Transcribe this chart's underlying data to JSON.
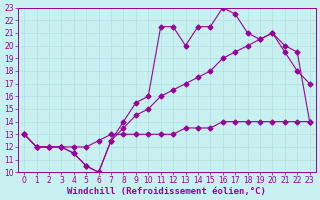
{
  "background_color": "#c8f0f0",
  "grid_color": "#b0e0e0",
  "line_color": "#990099",
  "xlabel": "Windchill (Refroidissement éolien,°C)",
  "xlabel_color": "#990099",
  "xlim": [
    -0.5,
    23.5
  ],
  "ylim": [
    10,
    23
  ],
  "xticks": [
    0,
    1,
    2,
    3,
    4,
    5,
    6,
    7,
    8,
    9,
    10,
    11,
    12,
    13,
    14,
    15,
    16,
    17,
    18,
    19,
    20,
    21,
    22,
    23
  ],
  "yticks": [
    10,
    11,
    12,
    13,
    14,
    15,
    16,
    17,
    18,
    19,
    20,
    21,
    22,
    23
  ],
  "line1_x": [
    0,
    1,
    2,
    3,
    4,
    5,
    6,
    7,
    8,
    9,
    10,
    11,
    12,
    13,
    14,
    15,
    16,
    17,
    18,
    19,
    20,
    21,
    22,
    23
  ],
  "line1_y": [
    13,
    12,
    12,
    12,
    11.5,
    10.5,
    10,
    12.5,
    14,
    15.5,
    16,
    21.5,
    21.5,
    20,
    21.5,
    21.5,
    23,
    22.5,
    21,
    20.5,
    21,
    19.5,
    18,
    17
  ],
  "line2_x": [
    0,
    1,
    2,
    3,
    4,
    5,
    6,
    7,
    8,
    9,
    10,
    11,
    12,
    13,
    14,
    15,
    16,
    17,
    18,
    19,
    20,
    21,
    22,
    23
  ],
  "line2_y": [
    13,
    12,
    12,
    12,
    11.5,
    10.5,
    10,
    12.5,
    13.5,
    14.5,
    15,
    16,
    16.5,
    17,
    17.5,
    18,
    19,
    19.5,
    20,
    20.5,
    21,
    20,
    19.5,
    14
  ],
  "line3_x": [
    0,
    1,
    2,
    3,
    4,
    5,
    6,
    7,
    8,
    9,
    10,
    11,
    12,
    13,
    14,
    15,
    16,
    17,
    18,
    19,
    20,
    21,
    22,
    23
  ],
  "line3_y": [
    13,
    12,
    12,
    12,
    12,
    12,
    12.5,
    13,
    13,
    13,
    13,
    13,
    13,
    13.5,
    13.5,
    13.5,
    14,
    14,
    14,
    14,
    14,
    14,
    14,
    14
  ],
  "marker": "D",
  "markersize": 2.5,
  "tick_fontsize": 5.5,
  "label_fontsize": 6.5
}
